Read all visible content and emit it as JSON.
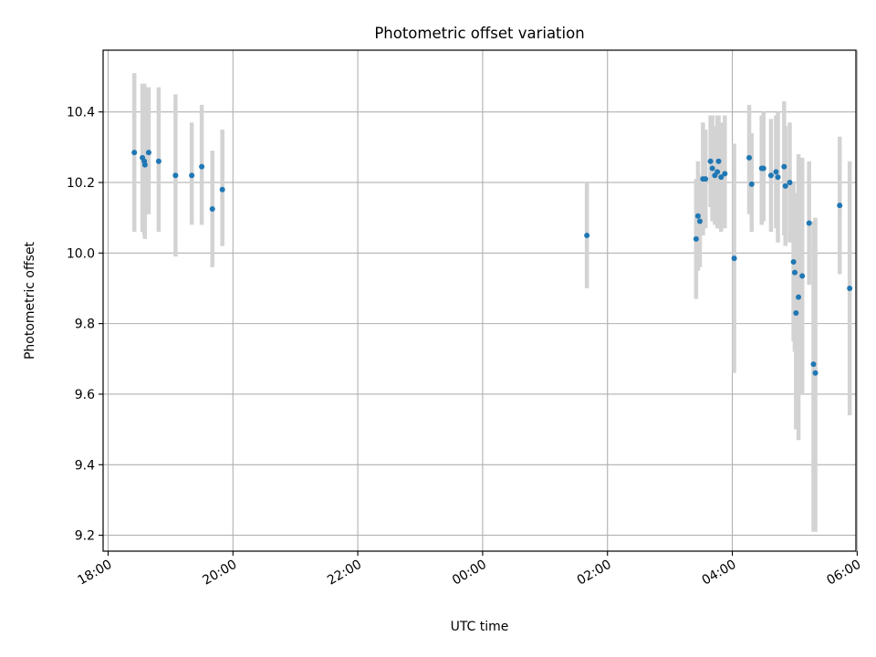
{
  "chart_data": {
    "type": "scatter",
    "title": "Photometric offset variation",
    "xlabel": "UTC time",
    "ylabel": "Photometric offset",
    "x_unit": "hours relative to 00:00 UTC",
    "xlim": [
      -6.08,
      5.98
    ],
    "ylim": [
      9.155,
      10.575
    ],
    "grid": true,
    "x_ticks": [
      {
        "value": -6,
        "label": "18:00"
      },
      {
        "value": -4,
        "label": "20:00"
      },
      {
        "value": -2,
        "label": "22:00"
      },
      {
        "value": 0,
        "label": "00:00"
      },
      {
        "value": 2,
        "label": "02:00"
      },
      {
        "value": 4,
        "label": "04:00"
      },
      {
        "value": 6,
        "label": "06:00"
      }
    ],
    "y_ticks": [
      {
        "value": 9.2,
        "label": "9.2"
      },
      {
        "value": 9.4,
        "label": "9.4"
      },
      {
        "value": 9.6,
        "label": "9.6"
      },
      {
        "value": 9.8,
        "label": "9.8"
      },
      {
        "value": 10.0,
        "label": "10.0"
      },
      {
        "value": 10.2,
        "label": "10.2"
      },
      {
        "value": 10.4,
        "label": "10.4"
      }
    ],
    "colors": {
      "point": "#1f77b4",
      "errorbar": "#d3d3d3",
      "grid": "#b0b0b0"
    },
    "points": [
      {
        "x": -5.58,
        "y": 10.285,
        "lo": 10.06,
        "hi": 10.51
      },
      {
        "x": -5.45,
        "y": 10.27,
        "lo": 10.06,
        "hi": 10.48
      },
      {
        "x": -5.42,
        "y": 10.26,
        "lo": 10.05,
        "hi": 10.48
      },
      {
        "x": -5.41,
        "y": 10.25,
        "lo": 10.04,
        "hi": 10.47
      },
      {
        "x": -5.35,
        "y": 10.285,
        "lo": 10.11,
        "hi": 10.47
      },
      {
        "x": -5.19,
        "y": 10.26,
        "lo": 10.06,
        "hi": 10.47
      },
      {
        "x": -4.92,
        "y": 10.22,
        "lo": 9.99,
        "hi": 10.45
      },
      {
        "x": -4.66,
        "y": 10.22,
        "lo": 10.08,
        "hi": 10.37
      },
      {
        "x": -4.5,
        "y": 10.245,
        "lo": 10.08,
        "hi": 10.42
      },
      {
        "x": -4.33,
        "y": 10.125,
        "lo": 9.96,
        "hi": 10.29
      },
      {
        "x": -4.17,
        "y": 10.18,
        "lo": 10.02,
        "hi": 10.35
      },
      {
        "x": 1.67,
        "y": 10.05,
        "lo": 9.9,
        "hi": 10.2
      },
      {
        "x": 3.42,
        "y": 10.04,
        "lo": 9.87,
        "hi": 10.21
      },
      {
        "x": 3.45,
        "y": 10.105,
        "lo": 9.95,
        "hi": 10.26
      },
      {
        "x": 3.48,
        "y": 10.09,
        "lo": 9.96,
        "hi": 10.22
      },
      {
        "x": 3.53,
        "y": 10.21,
        "lo": 10.05,
        "hi": 10.37
      },
      {
        "x": 3.57,
        "y": 10.21,
        "lo": 10.07,
        "hi": 10.35
      },
      {
        "x": 3.65,
        "y": 10.26,
        "lo": 10.13,
        "hi": 10.39
      },
      {
        "x": 3.68,
        "y": 10.24,
        "lo": 10.09,
        "hi": 10.39
      },
      {
        "x": 3.72,
        "y": 10.22,
        "lo": 10.08,
        "hi": 10.36
      },
      {
        "x": 3.76,
        "y": 10.23,
        "lo": 10.07,
        "hi": 10.39
      },
      {
        "x": 3.78,
        "y": 10.26,
        "lo": 10.12,
        "hi": 10.39
      },
      {
        "x": 3.82,
        "y": 10.215,
        "lo": 10.06,
        "hi": 10.37
      },
      {
        "x": 3.88,
        "y": 10.225,
        "lo": 10.07,
        "hi": 10.39
      },
      {
        "x": 4.03,
        "y": 9.985,
        "lo": 9.66,
        "hi": 10.31
      },
      {
        "x": 4.27,
        "y": 10.27,
        "lo": 10.11,
        "hi": 10.42
      },
      {
        "x": 4.31,
        "y": 10.195,
        "lo": 10.06,
        "hi": 10.34
      },
      {
        "x": 4.47,
        "y": 10.24,
        "lo": 10.08,
        "hi": 10.39
      },
      {
        "x": 4.5,
        "y": 10.24,
        "lo": 10.09,
        "hi": 10.4
      },
      {
        "x": 4.62,
        "y": 10.22,
        "lo": 10.06,
        "hi": 10.38
      },
      {
        "x": 4.7,
        "y": 10.23,
        "lo": 10.07,
        "hi": 10.39
      },
      {
        "x": 4.73,
        "y": 10.215,
        "lo": 10.03,
        "hi": 10.4
      },
      {
        "x": 4.83,
        "y": 10.245,
        "lo": 10.05,
        "hi": 10.43
      },
      {
        "x": 4.85,
        "y": 10.19,
        "lo": 10.02,
        "hi": 10.36
      },
      {
        "x": 4.92,
        "y": 10.2,
        "lo": 10.03,
        "hi": 10.37
      },
      {
        "x": 4.98,
        "y": 9.975,
        "lo": 9.75,
        "hi": 10.2
      },
      {
        "x": 5.0,
        "y": 9.945,
        "lo": 9.72,
        "hi": 10.17
      },
      {
        "x": 5.02,
        "y": 9.83,
        "lo": 9.5,
        "hi": 10.15
      },
      {
        "x": 5.06,
        "y": 9.875,
        "lo": 9.47,
        "hi": 10.28
      },
      {
        "x": 5.12,
        "y": 9.935,
        "lo": 9.6,
        "hi": 10.27
      },
      {
        "x": 5.23,
        "y": 10.085,
        "lo": 9.91,
        "hi": 10.26
      },
      {
        "x": 5.3,
        "y": 9.685,
        "lo": 9.21,
        "hi": 10.09
      },
      {
        "x": 5.33,
        "y": 9.66,
        "lo": 9.21,
        "hi": 10.1
      },
      {
        "x": 5.72,
        "y": 10.135,
        "lo": 9.94,
        "hi": 10.33
      },
      {
        "x": 5.88,
        "y": 9.9,
        "lo": 9.54,
        "hi": 10.26
      }
    ]
  }
}
